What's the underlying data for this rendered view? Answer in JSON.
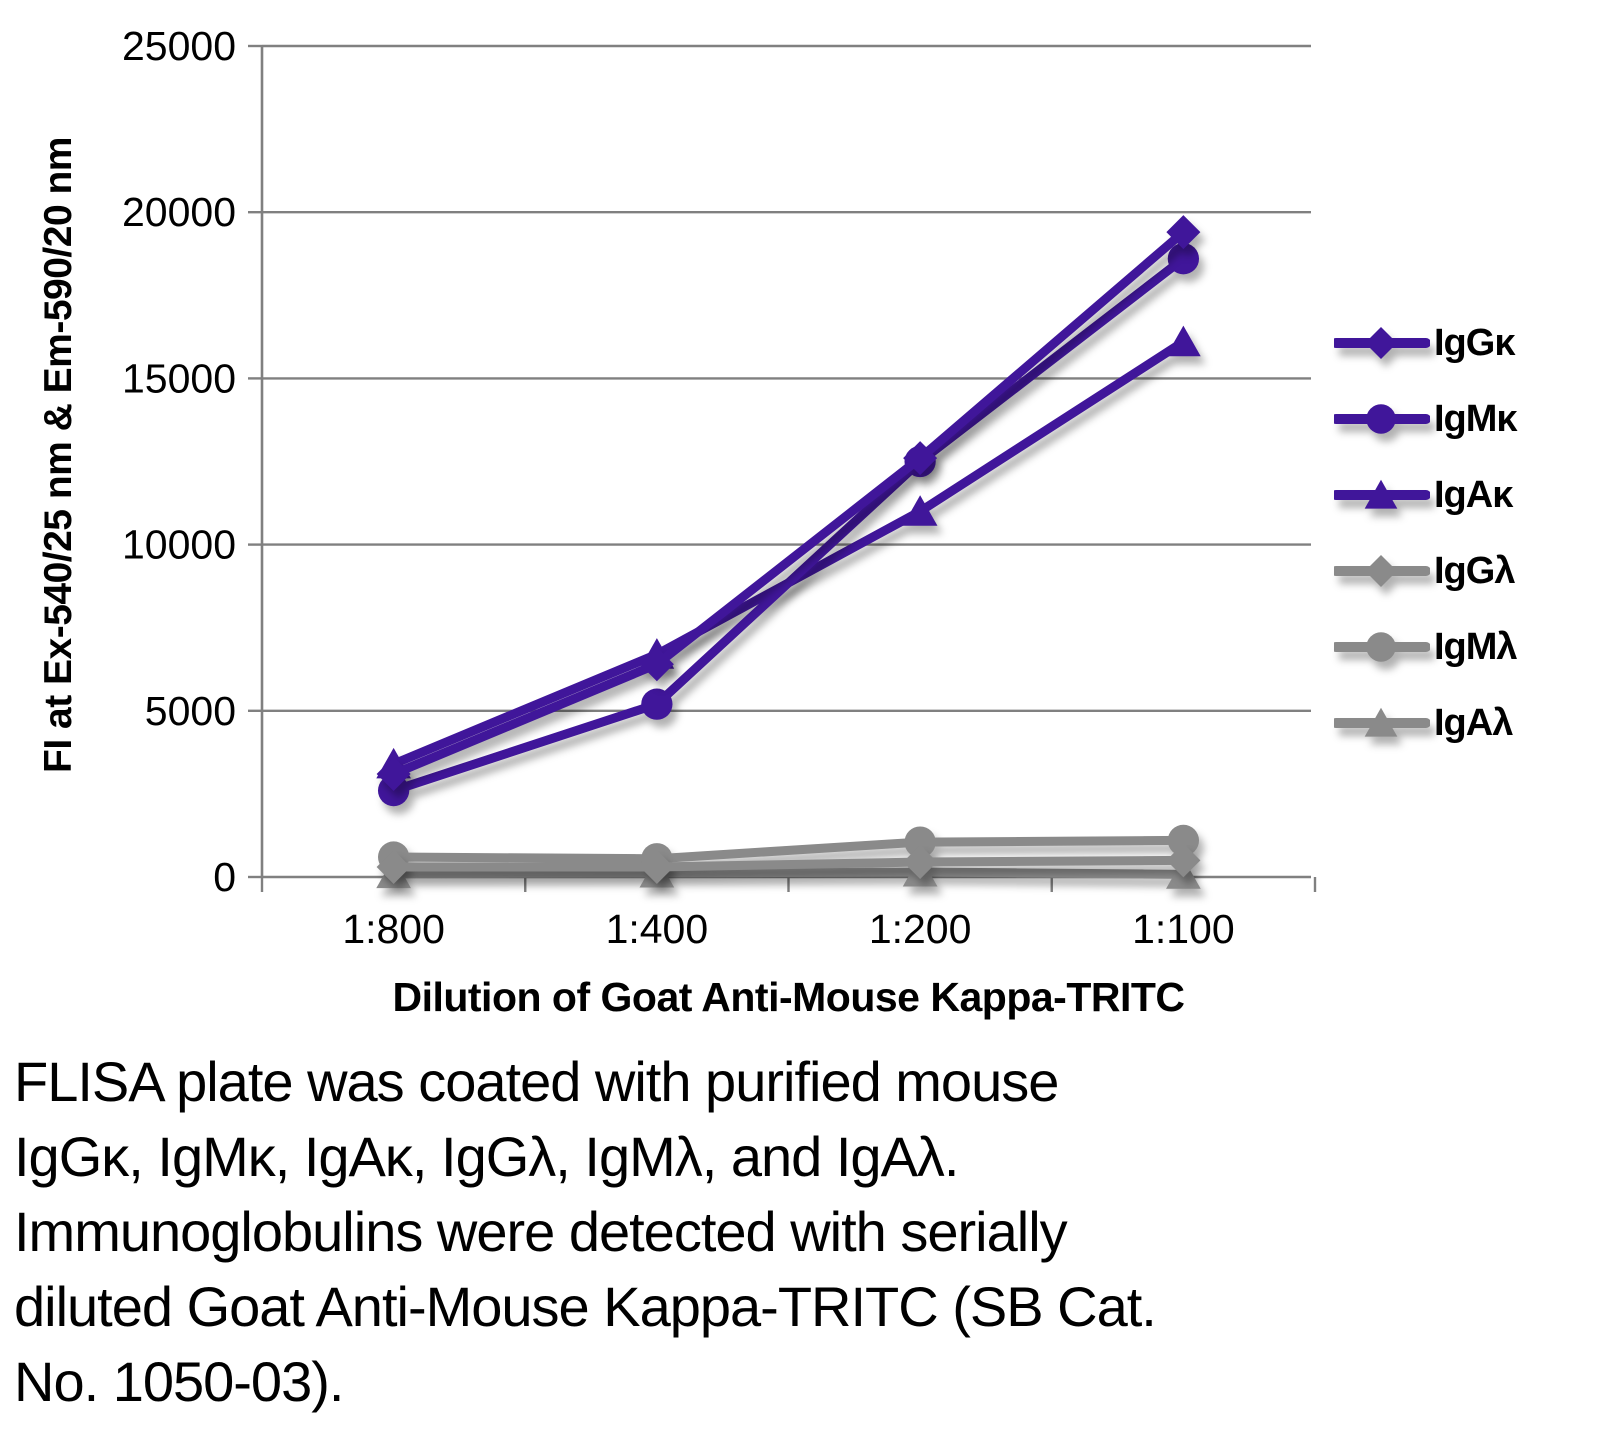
{
  "chart_data": {
    "type": "line",
    "xlabel": "Dilution of Goat Anti-Mouse Kappa-TRITC",
    "ylabel": "FI at Ex-540/25 nm & Em-590/20 nm",
    "categories": [
      "1:800",
      "1:400",
      "1:200",
      "1:100"
    ],
    "ylim": [
      0,
      25000
    ],
    "yticks": [
      0,
      5000,
      10000,
      15000,
      20000,
      25000
    ],
    "ytick_labels": [
      "0",
      "5000",
      "10000",
      "15000",
      "20000",
      "25000"
    ],
    "grid": true,
    "legend_position": "right",
    "colors": {
      "kappa_purple": "#40169A",
      "lambda_gray": "#8A8A8A",
      "gridline": "#808080",
      "text": "#000000"
    },
    "series": [
      {
        "name": "IgGκ",
        "marker": "diamond",
        "color": "#40169A",
        "values": [
          3100,
          6400,
          12600,
          19400
        ]
      },
      {
        "name": "IgMκ",
        "marker": "circle",
        "color": "#40169A",
        "values": [
          2600,
          5200,
          12500,
          18600
        ]
      },
      {
        "name": "IgAκ",
        "marker": "triangle",
        "color": "#40169A",
        "values": [
          3400,
          6700,
          11000,
          16100
        ]
      },
      {
        "name": "IgGλ",
        "marker": "diamond",
        "color": "#8A8A8A",
        "values": [
          300,
          300,
          450,
          500
        ]
      },
      {
        "name": "IgMλ",
        "marker": "circle",
        "color": "#8A8A8A",
        "values": [
          600,
          550,
          1050,
          1100
        ]
      },
      {
        "name": "IgAλ",
        "marker": "triangle",
        "color": "#8A8A8A",
        "values": [
          100,
          120,
          150,
          80
        ]
      }
    ]
  },
  "caption": {
    "lines": [
      "FLISA plate was coated with purified mouse",
      "IgGκ, IgMκ, IgAκ, IgGλ, IgMλ, and IgAλ.",
      "Immunoglobulins were detected with serially",
      "diluted Goat Anti-Mouse Kappa-TRITC (SB Cat.",
      "No. 1050-03)."
    ]
  }
}
